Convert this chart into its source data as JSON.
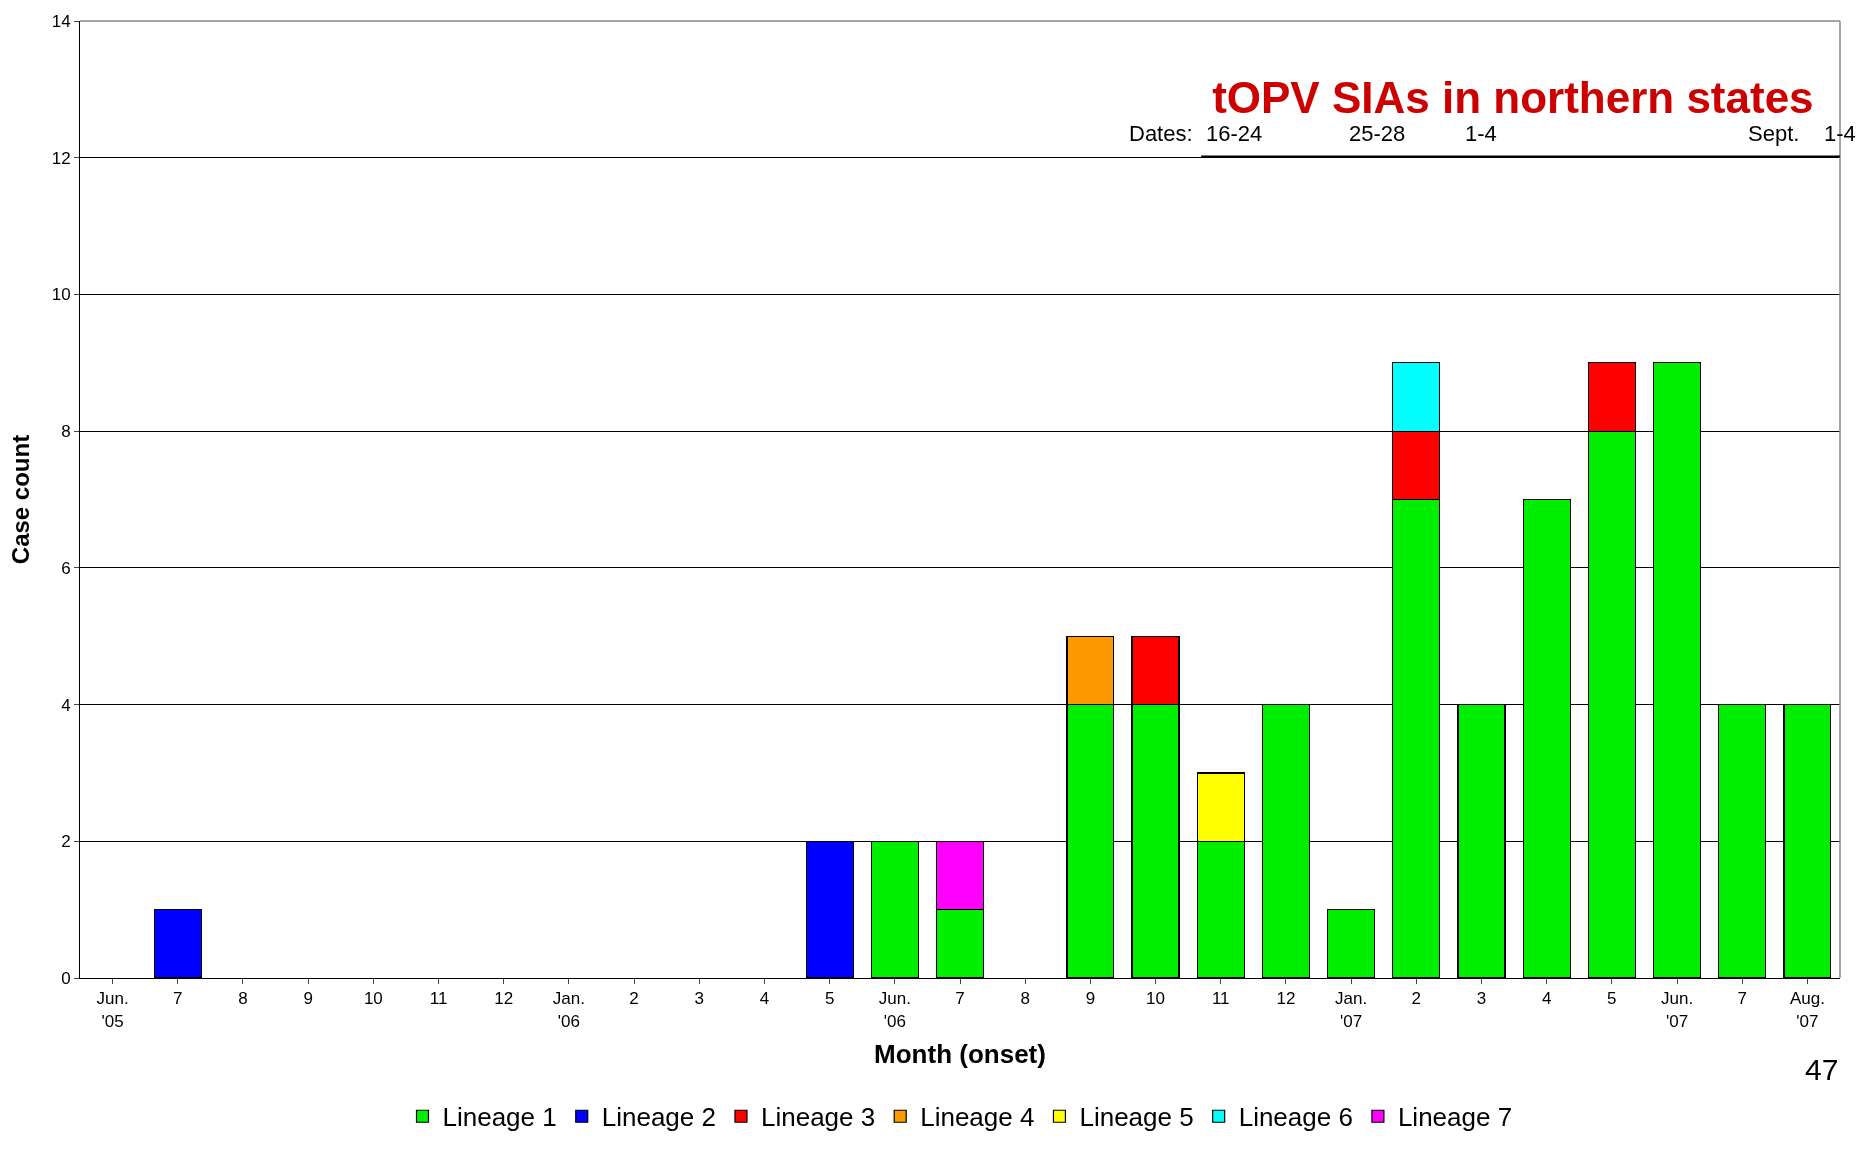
{
  "chart_data": {
    "type": "bar",
    "stacked": true,
    "title": "tOPV SIAs in northern states",
    "xlabel": "Month (onset)",
    "ylabel": "Case count",
    "categories": [
      "Jun.\n'05",
      "7",
      "8",
      "9",
      "10",
      "11",
      "12",
      "Jan.\n'06",
      "2",
      "3",
      "4",
      "5",
      "Jun.\n'06",
      "7",
      "8",
      "9",
      "10",
      "11",
      "12",
      "Jan.\n'07",
      "2",
      "3",
      "4",
      "5",
      "Jun.\n'07",
      "7",
      "Aug.\n'07"
    ],
    "series": [
      {
        "name": "Lineage 1",
        "color": "#00ee00",
        "values": [
          null,
          null,
          null,
          null,
          null,
          null,
          null,
          null,
          null,
          null,
          null,
          null,
          2,
          1,
          null,
          4,
          4,
          2,
          4,
          1,
          7,
          4,
          7,
          8,
          9,
          4,
          4
        ]
      },
      {
        "name": "Lineage 2",
        "color": "#0000ff",
        "values": [
          null,
          1,
          null,
          null,
          null,
          null,
          null,
          null,
          null,
          null,
          null,
          2,
          null,
          null,
          null,
          null,
          null,
          null,
          null,
          null,
          null,
          null,
          null,
          null,
          null,
          null,
          null
        ]
      },
      {
        "name": "Lineage 3",
        "color": "#ff0000",
        "values": [
          null,
          null,
          null,
          null,
          null,
          null,
          null,
          null,
          null,
          null,
          null,
          null,
          null,
          null,
          null,
          null,
          1,
          null,
          null,
          null,
          1,
          null,
          null,
          1,
          null,
          null,
          null
        ]
      },
      {
        "name": "Lineage 4",
        "color": "#ff9900",
        "values": [
          null,
          null,
          null,
          null,
          null,
          null,
          null,
          null,
          null,
          null,
          null,
          null,
          null,
          null,
          null,
          1,
          null,
          null,
          null,
          null,
          null,
          null,
          null,
          null,
          null,
          null,
          null
        ]
      },
      {
        "name": "Lineage 5",
        "color": "#ffff00",
        "values": [
          null,
          null,
          null,
          null,
          null,
          null,
          null,
          null,
          null,
          null,
          null,
          null,
          null,
          null,
          null,
          null,
          null,
          1,
          null,
          null,
          null,
          null,
          null,
          null,
          null,
          null,
          null
        ]
      },
      {
        "name": "Lineage 6",
        "color": "#00ffff",
        "values": [
          null,
          null,
          null,
          null,
          null,
          null,
          null,
          null,
          null,
          null,
          null,
          null,
          null,
          null,
          null,
          null,
          null,
          null,
          null,
          null,
          1,
          null,
          null,
          null,
          null,
          null,
          null
        ]
      },
      {
        "name": "Lineage 7",
        "color": "#ff00ff",
        "values": [
          null,
          null,
          null,
          null,
          null,
          null,
          null,
          null,
          null,
          null,
          null,
          null,
          null,
          1,
          null,
          null,
          null,
          null,
          null,
          null,
          null,
          null,
          null,
          null,
          null,
          null,
          null
        ]
      }
    ],
    "ylim": [
      0,
      14
    ],
    "yticks": [
      0,
      2,
      4,
      6,
      8,
      10,
      12,
      14
    ],
    "grid": "y",
    "legend": "bottom",
    "annotations": [
      "Dates:",
      "16-24",
      "25-28",
      "1-4",
      "Sept.",
      "1-4",
      "47"
    ]
  }
}
